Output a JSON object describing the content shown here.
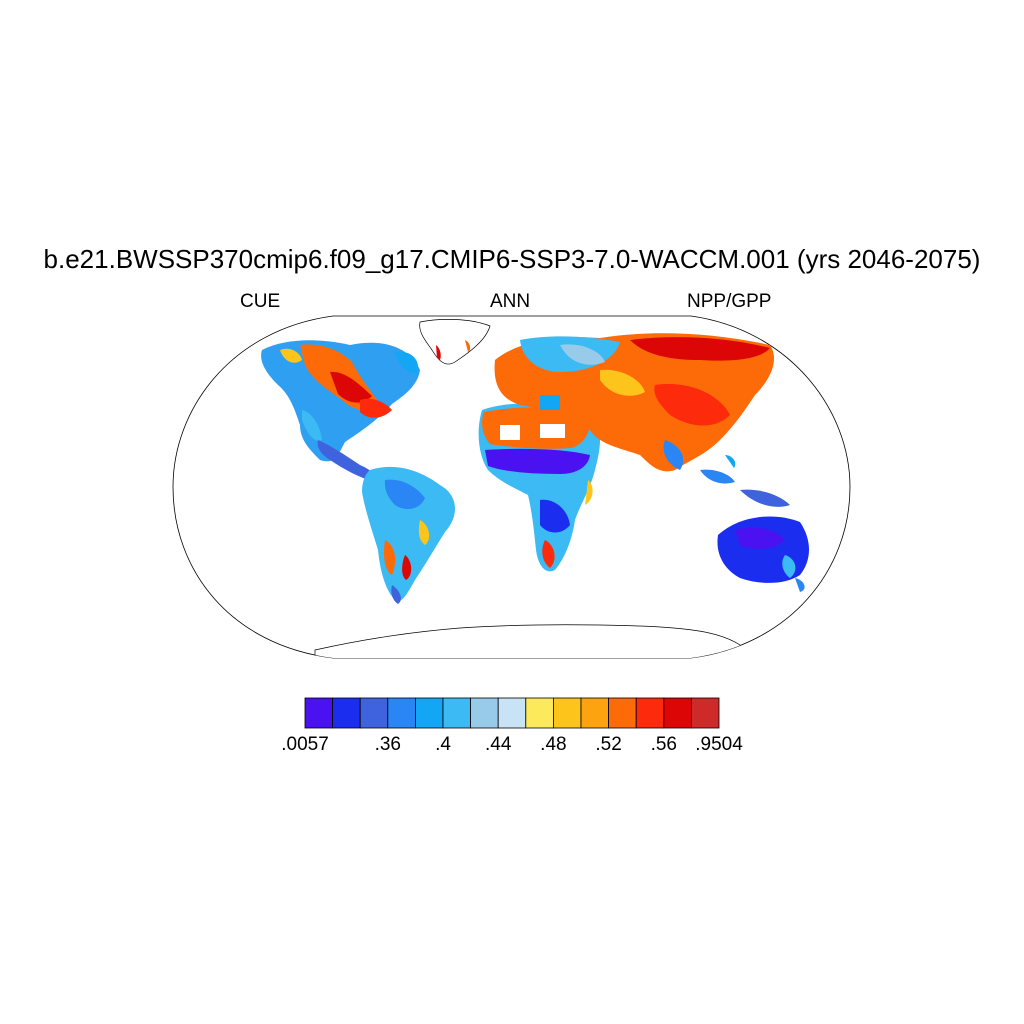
{
  "title": "b.e21.BWSSP370cmip6.f09_g17.CMIP6-SSP3-7.0-WACCM.001 (yrs 2046-2075)",
  "left_string": "CUE",
  "center_string": "ANN",
  "right_string": "NPP/GPP",
  "colorbar": {
    "colors": [
      "#4a12f0",
      "#1b2ef0",
      "#3f63de",
      "#2a86f5",
      "#12a6f5",
      "#3bbaf3",
      "#97cbe9",
      "#c7e3f5",
      "#fde95c",
      "#fdc51b",
      "#fda30f",
      "#fd6a08",
      "#fd2b0b",
      "#dc0606",
      "#cf2a2a"
    ],
    "labels": [
      ".0057",
      ".36",
      ".4",
      ".44",
      ".48",
      ".52",
      ".56",
      ".9504"
    ],
    "label_boxes": [
      0,
      3,
      5,
      7,
      9,
      11,
      13,
      15
    ]
  }
}
